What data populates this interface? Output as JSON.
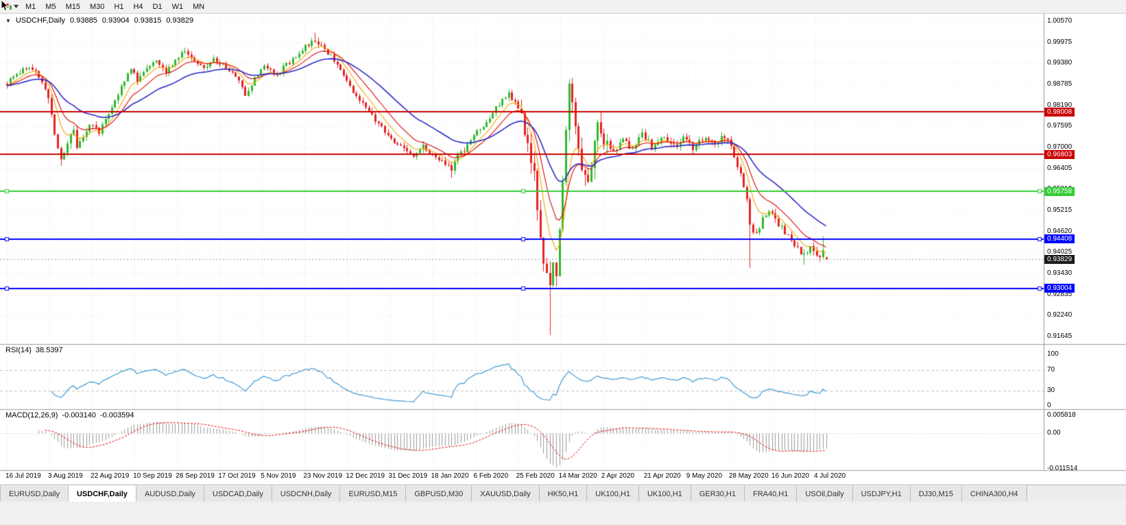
{
  "toolbar": {
    "timeframes": [
      "M1",
      "M5",
      "M15",
      "M30",
      "H1",
      "H4",
      "D1",
      "W1",
      "MN"
    ]
  },
  "chart": {
    "symbol_period": "USDCHF,Daily",
    "open": "0.93885",
    "high": "0.93904",
    "low": "0.93815",
    "close": "0.93829"
  },
  "price_axis": [
    "1.00570",
    "0.99975",
    "0.99380",
    "0.98785",
    "0.98190",
    "0.97595",
    "0.97000",
    "0.96405",
    "0.95810",
    "0.95215",
    "0.94620",
    "0.94025",
    "0.93430",
    "0.92835",
    "0.92240",
    "0.91645"
  ],
  "date_axis": [
    "16 Jul 2019",
    "3 Aug 2019",
    "22 Aug 2019",
    "10 Sep 2019",
    "28 Sep 2019",
    "17 Oct 2019",
    "5 Nov 2019",
    "23 Nov 2019",
    "12 Dec 2019",
    "31 Dec 2019",
    "18 Jan 2020",
    "6 Feb 2020",
    "25 Feb 2020",
    "14 Mar 2020",
    "2 Apr 2020",
    "21 Apr 2020",
    "9 May 2020",
    "28 May 2020",
    "16 Jun 2020",
    "4 Jul 2020"
  ],
  "levels": [
    {
      "label": "0.98008",
      "price": 0.98008,
      "color": "#cc0000",
      "handles": false
    },
    {
      "label": "0.96803",
      "price": 0.96803,
      "color": "#cc0000",
      "handles": false
    },
    {
      "label": "0.95758",
      "price": 0.95758,
      "color": "#33cc33",
      "handles": true
    },
    {
      "label": "0.94408",
      "price": 0.94408,
      "color": "#0000ff",
      "handles": true
    },
    {
      "label": "0.93004",
      "price": 0.93004,
      "color": "#0000ff",
      "handles": true
    }
  ],
  "current_price": {
    "label": "0.93829",
    "price": 0.93829
  },
  "rsi": {
    "name": "RSI(14)",
    "value": "38.5397",
    "axis": [
      "100",
      "70",
      "30",
      "0"
    ],
    "guides": [
      70,
      30
    ]
  },
  "macd": {
    "name": "MACD(12,26,9)",
    "main": "-0.003140",
    "signal": "-0.003594",
    "axis": [
      "0.005818",
      "0.00",
      "-0.011514"
    ]
  },
  "tabs": {
    "active_index": 1,
    "items": [
      "EURUSD,Daily",
      "USDCHF,Daily",
      "AUDUSD,Daily",
      "USDCAD,Daily",
      "USDCNH,Daily",
      "EURUSD,M15",
      "GBPUSD,M30",
      "XAUUSD,Daily",
      "HK50,H1",
      "UK100,H1",
      "UK100,H1",
      "GER30,H1",
      "FRA40,H1",
      "USOil,Daily",
      "USDJPY,H1",
      "DJ30,M15",
      "CHINA300,H4"
    ]
  },
  "chart_data": {
    "type": "candlestick",
    "symbol": "USDCHF",
    "period": "Daily",
    "visible_range": [
      "16 Jul 2019",
      "10 Jul 2020"
    ],
    "price_range": [
      0.91645,
      1.0057
    ],
    "candle_count": 259,
    "close_anchors": [
      [
        0,
        0.988
      ],
      [
        3,
        0.9905
      ],
      [
        6,
        0.9928
      ],
      [
        9,
        0.9912
      ],
      [
        12,
        0.9868
      ],
      [
        14,
        0.98
      ],
      [
        15,
        0.9728
      ],
      [
        17,
        0.9668
      ],
      [
        19,
        0.9712
      ],
      [
        21,
        0.9748
      ],
      [
        22,
        0.9702
      ],
      [
        24,
        0.9726
      ],
      [
        26,
        0.9768
      ],
      [
        29,
        0.9744
      ],
      [
        31,
        0.9778
      ],
      [
        33,
        0.9818
      ],
      [
        35,
        0.9852
      ],
      [
        37,
        0.9892
      ],
      [
        39,
        0.9922
      ],
      [
        41,
        0.9892
      ],
      [
        44,
        0.9928
      ],
      [
        47,
        0.9952
      ],
      [
        50,
        0.9916
      ],
      [
        53,
        0.9944
      ],
      [
        55,
        0.9972
      ],
      [
        59,
        0.9948
      ],
      [
        62,
        0.992
      ],
      [
        65,
        0.995
      ],
      [
        68,
        0.9932
      ],
      [
        72,
        0.9902
      ],
      [
        75,
        0.9852
      ],
      [
        78,
        0.9894
      ],
      [
        81,
        0.9928
      ],
      [
        85,
        0.9906
      ],
      [
        88,
        0.9934
      ],
      [
        91,
        0.9958
      ],
      [
        94,
        0.9984
      ],
      [
        97,
        1.0002
      ],
      [
        99,
        0.9988
      ],
      [
        102,
        0.9958
      ],
      [
        105,
        0.9918
      ],
      [
        107,
        0.9882
      ],
      [
        109,
        0.9856
      ],
      [
        112,
        0.983
      ],
      [
        114,
        0.9802
      ],
      [
        116,
        0.9776
      ],
      [
        119,
        0.9746
      ],
      [
        122,
        0.9716
      ],
      [
        126,
        0.9692
      ],
      [
        128,
        0.9672
      ],
      [
        131,
        0.9702
      ],
      [
        134,
        0.9682
      ],
      [
        138,
        0.9654
      ],
      [
        140,
        0.9632
      ],
      [
        142,
        0.9676
      ],
      [
        145,
        0.9702
      ],
      [
        148,
        0.9744
      ],
      [
        152,
        0.9782
      ],
      [
        154,
        0.9812
      ],
      [
        156,
        0.9836
      ],
      [
        158,
        0.9852
      ],
      [
        160,
        0.983
      ],
      [
        162,
        0.979
      ],
      [
        164,
        0.9718
      ],
      [
        166,
        0.9628
      ],
      [
        167,
        0.9525
      ],
      [
        168,
        0.9438
      ],
      [
        170,
        0.933
      ],
      [
        171,
        0.9292
      ],
      [
        172,
        0.939
      ],
      [
        173,
        0.9325
      ],
      [
        174,
        0.9452
      ],
      [
        175,
        0.9598
      ],
      [
        176,
        0.9745
      ],
      [
        177,
        0.9868
      ],
      [
        178,
        0.984
      ],
      [
        180,
        0.9705
      ],
      [
        181,
        0.9645
      ],
      [
        183,
        0.9602
      ],
      [
        185,
        0.9698
      ],
      [
        186,
        0.9758
      ],
      [
        188,
        0.9722
      ],
      [
        190,
        0.9682
      ],
      [
        194,
        0.9722
      ],
      [
        197,
        0.9692
      ],
      [
        200,
        0.9742
      ],
      [
        203,
        0.9702
      ],
      [
        207,
        0.973
      ],
      [
        210,
        0.97
      ],
      [
        213,
        0.9722
      ],
      [
        216,
        0.97
      ],
      [
        220,
        0.973
      ],
      [
        223,
        0.9712
      ],
      [
        226,
        0.973
      ],
      [
        228,
        0.97
      ],
      [
        230,
        0.9652
      ],
      [
        233,
        0.956
      ],
      [
        234,
        0.9482
      ],
      [
        236,
        0.9452
      ],
      [
        238,
        0.9502
      ],
      [
        240,
        0.9522
      ],
      [
        242,
        0.9492
      ],
      [
        245,
        0.9462
      ],
      [
        247,
        0.9432
      ],
      [
        249,
        0.9412
      ],
      [
        251,
        0.9392
      ],
      [
        253,
        0.9412
      ],
      [
        255,
        0.9386
      ],
      [
        257,
        0.9402
      ],
      [
        258,
        0.93829
      ]
    ],
    "special_candles": {
      "17": {
        "l": 0.9648
      },
      "97": {
        "h": 1.0025
      },
      "140": {
        "l": 0.9613
      },
      "171": {
        "l": 0.9169
      },
      "177": {
        "h": 0.9893
      },
      "234": {
        "l": 0.9358
      },
      "251": {
        "l": 0.9368
      },
      "257": {
        "h": 0.9448
      },
      "258": {
        "o": 0.93885,
        "h": 0.93904,
        "l": 0.93815,
        "c": 0.93829
      }
    },
    "base_amp": 0.002,
    "volatility_zones": [
      {
        "from": 13,
        "to": 22,
        "amp": 0.003
      },
      {
        "from": 162,
        "to": 190,
        "amp": 0.006
      },
      {
        "from": 191,
        "to": 258,
        "amp": 0.0025
      }
    ],
    "moving_averages": [
      {
        "name": "ma-fast",
        "period": 7,
        "color": "#f0a500"
      },
      {
        "name": "ma-mid",
        "period": 13,
        "color": "#dd0000"
      },
      {
        "name": "ma-slow",
        "period": 30,
        "color": "#2929c8"
      }
    ],
    "indicators": {
      "rsi_period": 14,
      "macd_params": [
        12,
        26,
        9
      ],
      "macd_range": [
        -0.011514,
        0.005818
      ]
    },
    "colors": {
      "up": "#2db92d",
      "down": "#e42222",
      "rsi_line": "#3c97d3",
      "macd_hist": "#9a9a9a",
      "macd_signal": "#e00000",
      "grid": "#e6e6e6",
      "separator": "#9a9a9a",
      "level_guide": "#c0c0c0",
      "current_line": "#999999"
    }
  }
}
